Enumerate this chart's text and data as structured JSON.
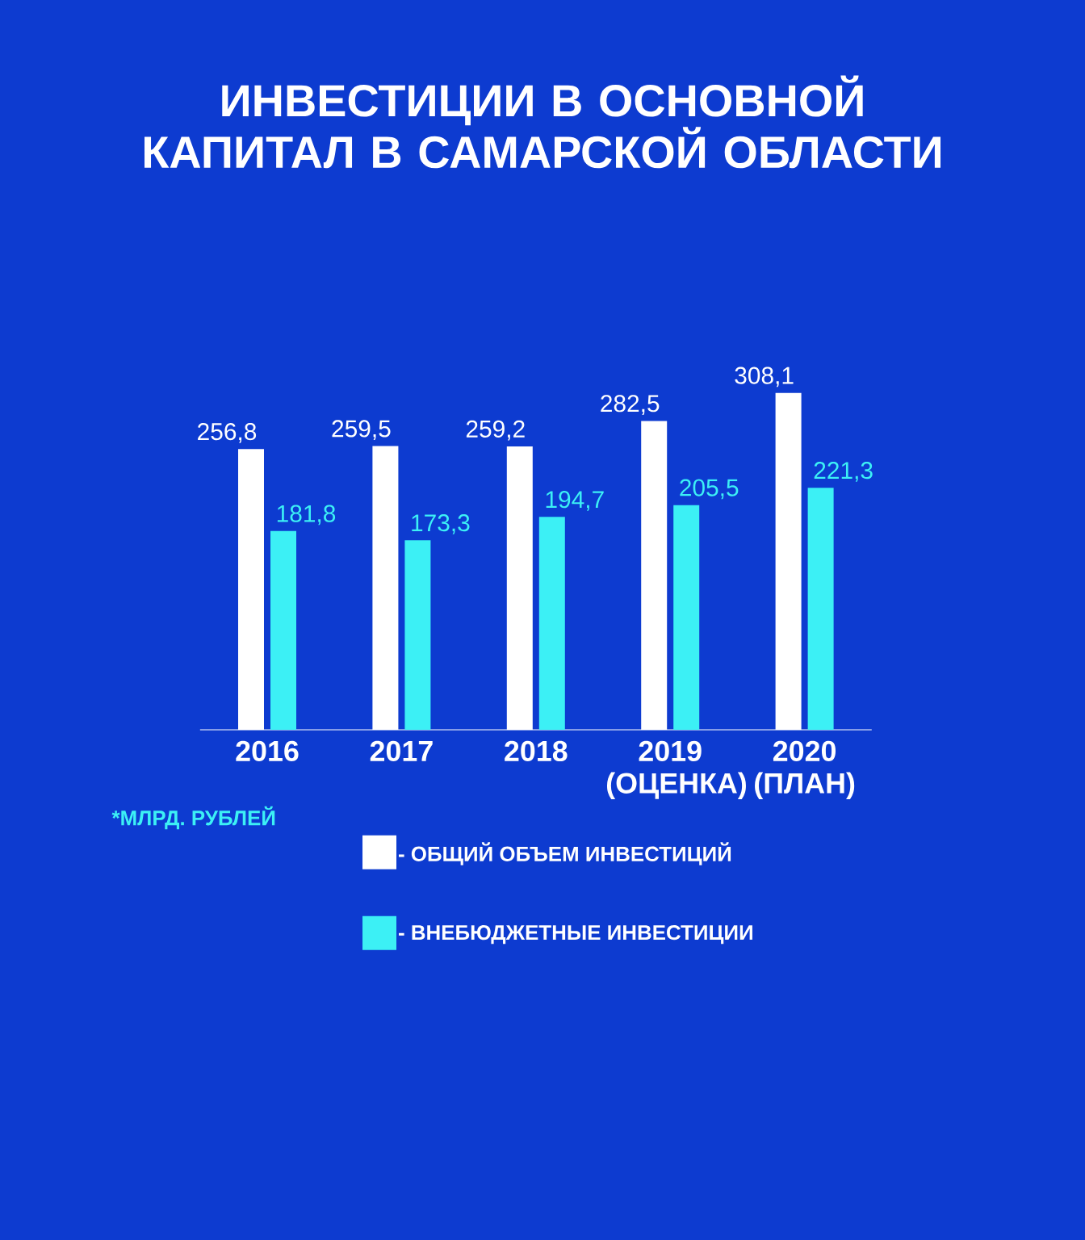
{
  "chart_data": {
    "type": "bar",
    "title": "ИНВЕСТИЦИИ В ОСНОВНОЙ КАПИТАЛ В САМАРСКОЙ ОБЛАСТИ",
    "categories": [
      "2016",
      "2017",
      "2018",
      "2019 (ОЦЕНКА)",
      "2020 (ПЛАН)"
    ],
    "series": [
      {
        "name": "- ОБЩИЙ ОБЪЕМ ИНВЕСТИЦИЙ",
        "color": "#ffffff",
        "values": [
          256.8,
          259.5,
          259.2,
          282.5,
          308.1
        ],
        "value_labels": [
          "256,8",
          "259,5",
          "259,2",
          "282,5",
          "308,1"
        ]
      },
      {
        "name": "- ВНЕБЮДЖЕТНЫЕ ИНВЕСТИЦИИ",
        "color": "#3cf0f5",
        "values": [
          181.8,
          173.3,
          194.7,
          205.5,
          221.3
        ],
        "value_labels": [
          "181,8",
          "173,3",
          "194,7",
          "205,5",
          "221,3"
        ]
      }
    ],
    "legend": "bottom",
    "annotations": [
      "*МЛРД. РУБЛЕЙ"
    ]
  }
}
